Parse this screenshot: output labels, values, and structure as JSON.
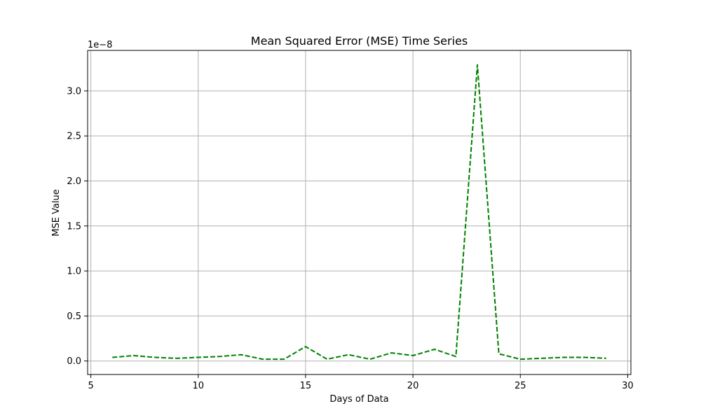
{
  "chart_data": {
    "type": "line",
    "title": "Mean Squared Error (MSE) Time Series",
    "xlabel": "Days of Data",
    "ylabel": "MSE Value",
    "y_offset_label": "1e−8",
    "xlim": [
      4.85,
      30.15
    ],
    "ylim": [
      -0.15,
      3.45
    ],
    "x_ticks": [
      5,
      10,
      15,
      20,
      25,
      30
    ],
    "x_tick_labels": [
      "5",
      "10",
      "15",
      "20",
      "25",
      "30"
    ],
    "y_ticks": [
      0.0,
      0.5,
      1.0,
      1.5,
      2.0,
      2.5,
      3.0
    ],
    "y_tick_labels": [
      "0.0",
      "0.5",
      "1.0",
      "1.5",
      "2.0",
      "2.5",
      "3.0"
    ],
    "grid": true,
    "series": [
      {
        "color": "#008000",
        "line_style": "dashed",
        "x": [
          6,
          7,
          8,
          9,
          10,
          11,
          12,
          13,
          14,
          15,
          16,
          17,
          18,
          19,
          20,
          21,
          22,
          23,
          24,
          25,
          26,
          27,
          28,
          29
        ],
        "values": [
          0.04,
          0.06,
          0.04,
          0.03,
          0.04,
          0.05,
          0.07,
          0.02,
          0.02,
          0.16,
          0.02,
          0.07,
          0.02,
          0.09,
          0.06,
          0.13,
          0.05,
          3.29,
          0.08,
          0.02,
          0.03,
          0.04,
          0.04,
          0.03
        ]
      }
    ]
  }
}
